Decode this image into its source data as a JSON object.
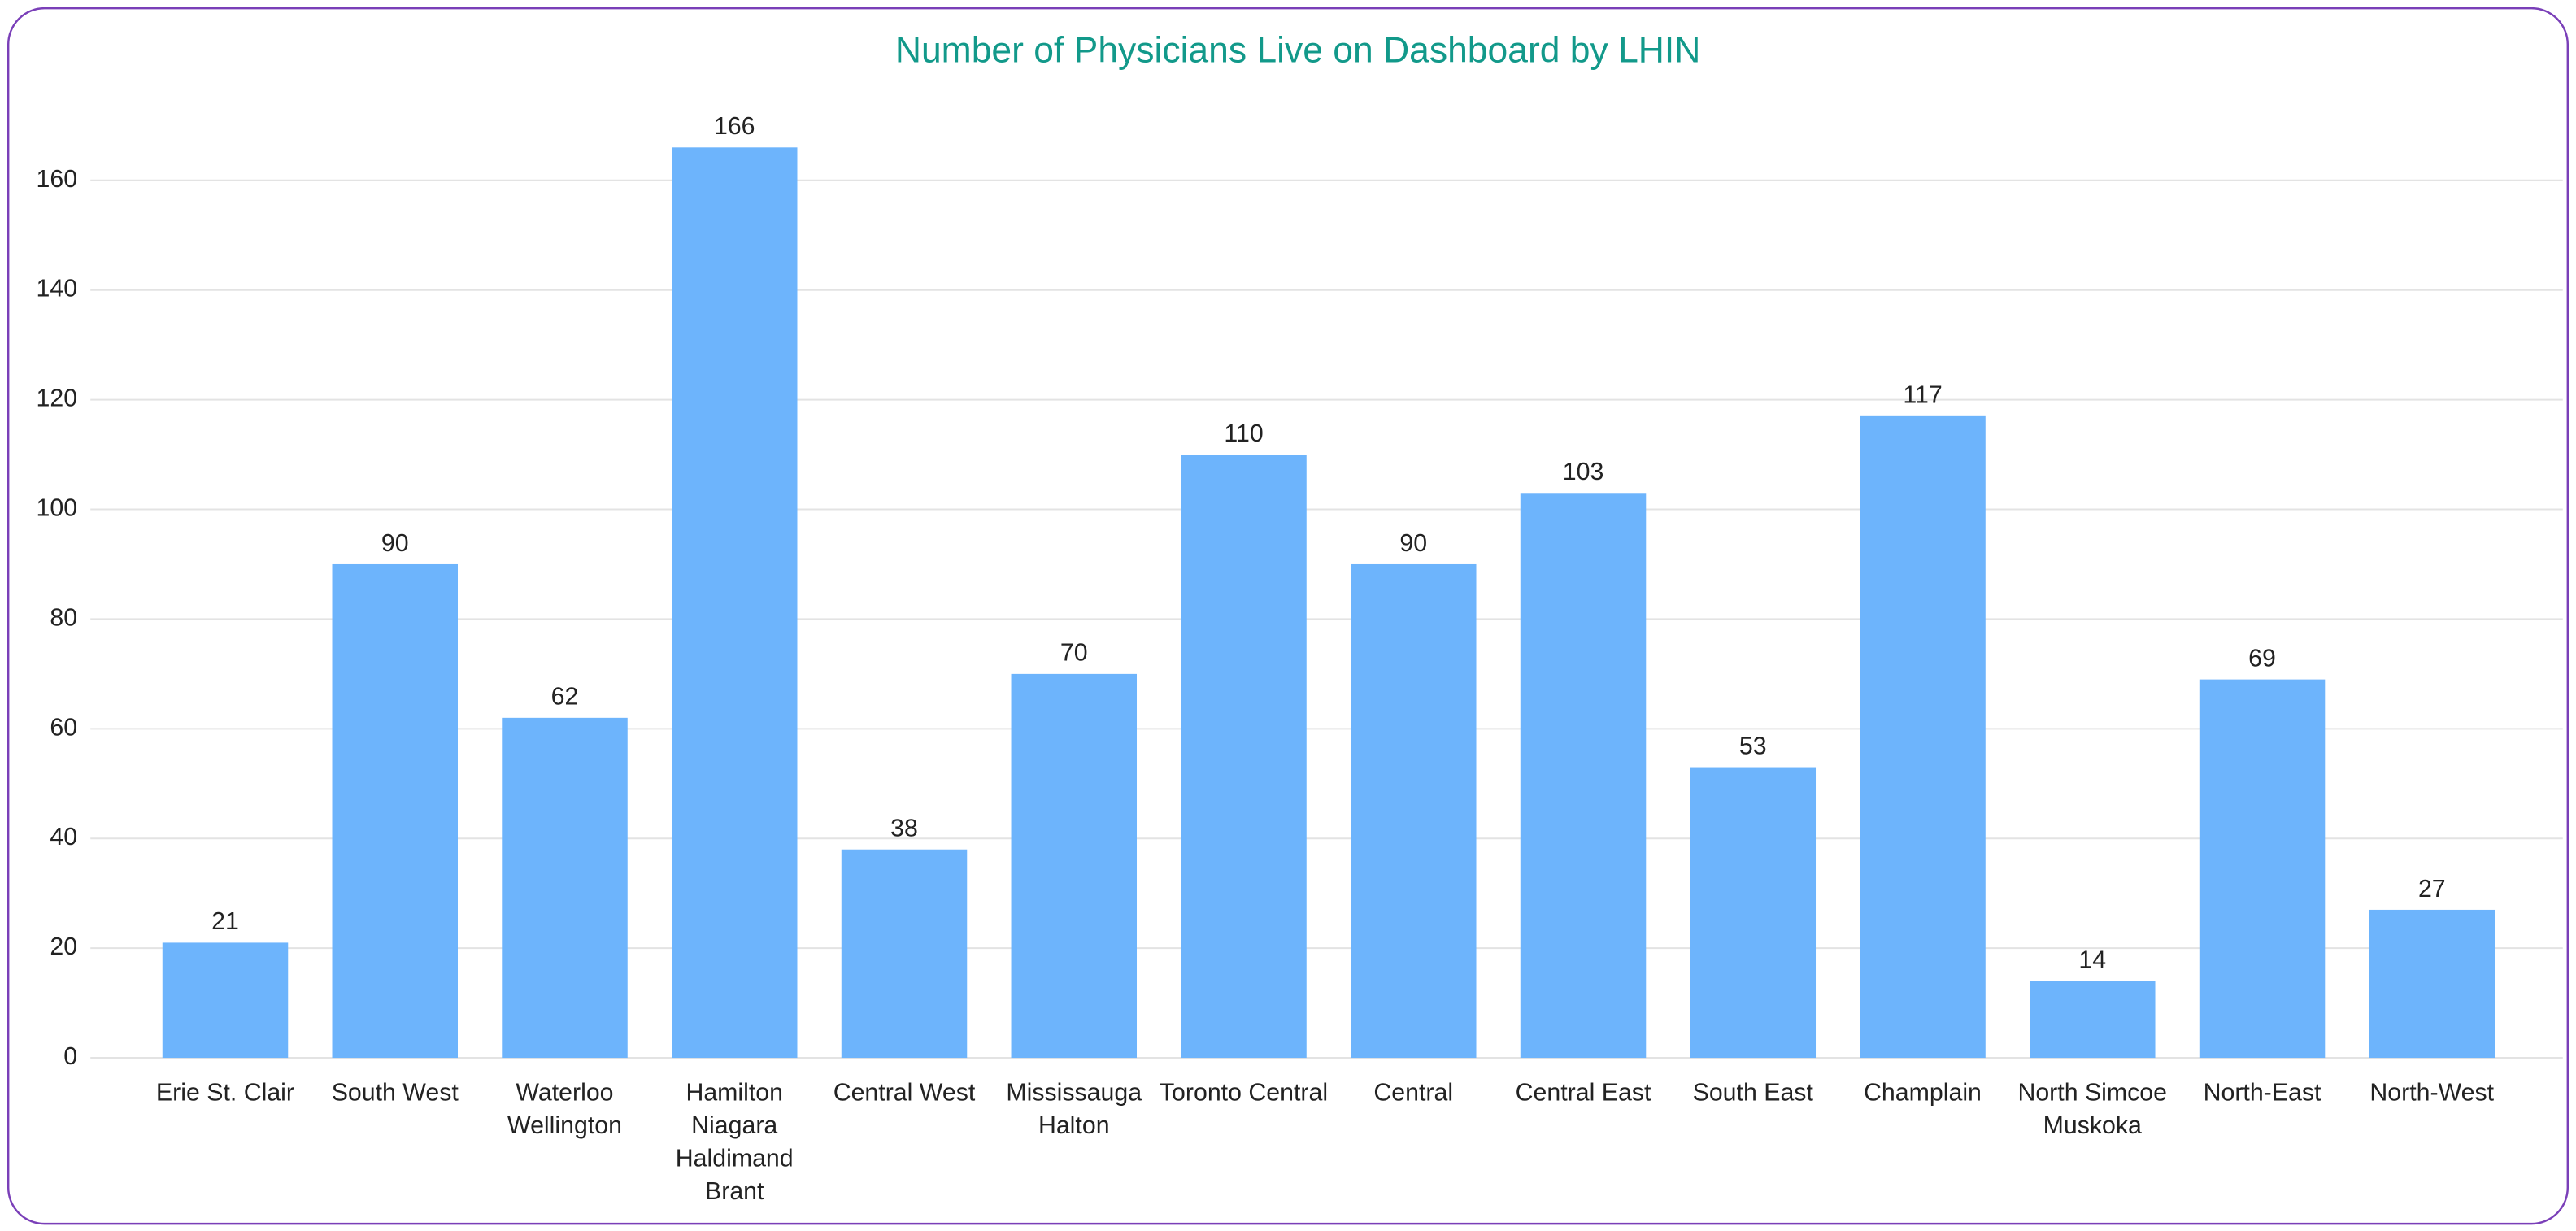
{
  "chart_data": {
    "type": "bar",
    "title": "Number of Physicians Live on Dashboard by LHIN",
    "categories": [
      "Erie St. Clair",
      "South West",
      "Waterloo Wellington",
      "Hamilton Niagara Haldimand Brant",
      "Central West",
      "Mississauga Halton",
      "Toronto Central",
      "Central",
      "Central East",
      "South East",
      "Champlain",
      "North Simcoe Muskoka",
      "North-East",
      "North-West"
    ],
    "values": [
      21,
      90,
      62,
      166,
      38,
      70,
      110,
      90,
      103,
      53,
      117,
      14,
      69,
      27
    ],
    "color": "#6db4fc",
    "ylim": [
      0,
      180
    ],
    "yticks": [
      0,
      20,
      40,
      60,
      80,
      100,
      120,
      140,
      160
    ],
    "grid": true
  }
}
